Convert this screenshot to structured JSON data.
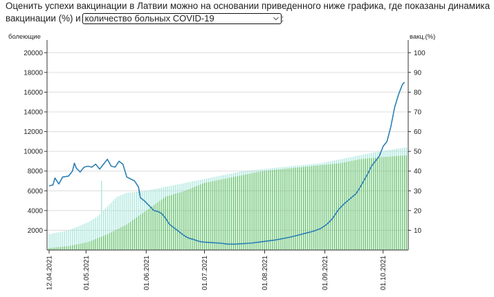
{
  "intro": {
    "line1": "Оценить успехи вакцинации в Латвии можно на основании приведенного ниже графика, где показаны динамика",
    "line2_prefix": "вакцинации (%) и",
    "line2_suffix": ":",
    "select_value": "количество больных COVID-19"
  },
  "chart_data": {
    "type": "bar",
    "left_axis_label": "болеющие",
    "right_axis_label": "вакц.(%)",
    "left_ylim": [
      0,
      21000
    ],
    "right_ylim": [
      0,
      105
    ],
    "left_ticks": [
      "2000",
      "4000",
      "6000",
      "8000",
      "10000",
      "12000",
      "14000",
      "16000",
      "18000",
      "20000"
    ],
    "right_ticks": [
      "10",
      "20",
      "30",
      "40",
      "50",
      "60",
      "70",
      "80",
      "90",
      "100"
    ],
    "x_labels": [
      "12.04.2021",
      "01.05.2021",
      "01.06.2021",
      "01.07.2021",
      "01.08.2021",
      "01.09.2021",
      "01.10.2021"
    ],
    "x_label_days": [
      0,
      19,
      50,
      80,
      111,
      142,
      172
    ],
    "total_days": 184,
    "grid": "horizontal",
    "series": [
      {
        "kind": "bars",
        "color": "#9fe3d8",
        "values_percent": [
          [
            0,
            8
          ],
          [
            10,
            10
          ],
          [
            20,
            14
          ],
          [
            25,
            17
          ],
          [
            30,
            22
          ],
          [
            35,
            27
          ],
          [
            40,
            29
          ],
          [
            50,
            30
          ],
          [
            60,
            32
          ],
          [
            70,
            34
          ],
          [
            80,
            36
          ],
          [
            90,
            38
          ],
          [
            100,
            40
          ],
          [
            110,
            41
          ],
          [
            120,
            42
          ],
          [
            130,
            43
          ],
          [
            140,
            44
          ],
          [
            150,
            46
          ],
          [
            160,
            48
          ],
          [
            170,
            50
          ],
          [
            184,
            52
          ]
        ],
        "spike": {
          "day": 27,
          "value_percent": 35
        }
      },
      {
        "kind": "bars",
        "color": "#5cbc5e",
        "values_percent": [
          [
            0,
            1
          ],
          [
            10,
            2
          ],
          [
            20,
            4
          ],
          [
            30,
            8
          ],
          [
            40,
            13
          ],
          [
            50,
            20
          ],
          [
            60,
            27
          ],
          [
            70,
            30
          ],
          [
            80,
            34
          ],
          [
            90,
            36
          ],
          [
            100,
            38
          ],
          [
            110,
            40
          ],
          [
            120,
            41
          ],
          [
            130,
            42
          ],
          [
            140,
            43
          ],
          [
            150,
            44
          ],
          [
            160,
            46
          ],
          [
            170,
            47
          ],
          [
            184,
            48
          ]
        ]
      },
      {
        "kind": "line",
        "color": "#2a7fb4",
        "values": [
          [
            0,
            6500
          ],
          [
            2,
            6600
          ],
          [
            3,
            7300
          ],
          [
            5,
            6700
          ],
          [
            7,
            7400
          ],
          [
            10,
            7500
          ],
          [
            12,
            8000
          ],
          [
            13,
            8800
          ],
          [
            14,
            8300
          ],
          [
            16,
            7900
          ],
          [
            18,
            8400
          ],
          [
            20,
            8500
          ],
          [
            22,
            8400
          ],
          [
            24,
            8700
          ],
          [
            26,
            8200
          ],
          [
            28,
            8700
          ],
          [
            30,
            9200
          ],
          [
            32,
            8500
          ],
          [
            34,
            8400
          ],
          [
            35,
            8700
          ],
          [
            36,
            9000
          ],
          [
            38,
            8700
          ],
          [
            40,
            7400
          ],
          [
            42,
            7200
          ],
          [
            44,
            7000
          ],
          [
            46,
            6400
          ],
          [
            47,
            5300
          ],
          [
            49,
            5000
          ],
          [
            50,
            4800
          ],
          [
            52,
            4400
          ],
          [
            54,
            4000
          ],
          [
            56,
            3900
          ],
          [
            58,
            3700
          ],
          [
            60,
            3200
          ],
          [
            62,
            2600
          ],
          [
            64,
            2300
          ],
          [
            66,
            2000
          ],
          [
            68,
            1700
          ],
          [
            70,
            1400
          ],
          [
            72,
            1200
          ],
          [
            74,
            1100
          ],
          [
            76,
            950
          ],
          [
            78,
            850
          ],
          [
            80,
            800
          ],
          [
            84,
            750
          ],
          [
            88,
            700
          ],
          [
            92,
            600
          ],
          [
            96,
            600
          ],
          [
            100,
            650
          ],
          [
            104,
            700
          ],
          [
            108,
            800
          ],
          [
            112,
            900
          ],
          [
            116,
            1000
          ],
          [
            120,
            1150
          ],
          [
            124,
            1300
          ],
          [
            128,
            1500
          ],
          [
            132,
            1700
          ],
          [
            136,
            1900
          ],
          [
            140,
            2200
          ],
          [
            143,
            2600
          ],
          [
            146,
            3200
          ],
          [
            149,
            4100
          ],
          [
            152,
            4700
          ],
          [
            155,
            5200
          ],
          [
            158,
            5700
          ],
          [
            160,
            6300
          ],
          [
            162,
            7000
          ],
          [
            164,
            7700
          ],
          [
            166,
            8500
          ],
          [
            168,
            9000
          ],
          [
            170,
            9500
          ],
          [
            172,
            10500
          ],
          [
            174,
            11000
          ],
          [
            176,
            12500
          ],
          [
            178,
            14500
          ],
          [
            180,
            15800
          ],
          [
            182,
            16800
          ],
          [
            183,
            17000
          ]
        ]
      }
    ]
  }
}
